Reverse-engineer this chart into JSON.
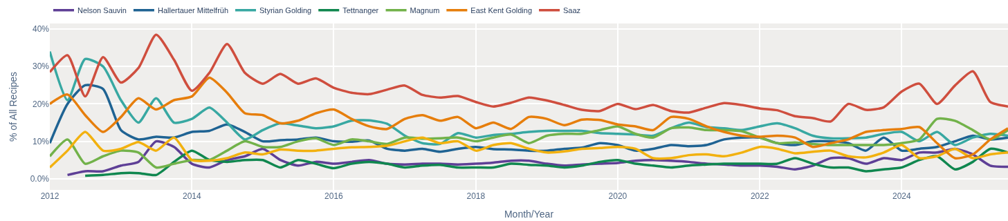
{
  "chart_data": {
    "type": "line",
    "xlabel": "Month/Year",
    "ylabel": "% of All Recipes",
    "x": [
      "2012-01",
      "2012-04",
      "2012-07",
      "2012-10",
      "2013-01",
      "2013-04",
      "2013-07",
      "2013-10",
      "2014-01",
      "2014-04",
      "2014-07",
      "2014-10",
      "2015-01",
      "2015-04",
      "2015-07",
      "2015-10",
      "2016-01",
      "2016-04",
      "2016-07",
      "2016-10",
      "2017-01",
      "2017-04",
      "2017-07",
      "2017-10",
      "2018-01",
      "2018-04",
      "2018-07",
      "2018-10",
      "2019-01",
      "2019-04",
      "2019-07",
      "2019-10",
      "2020-01",
      "2020-04",
      "2020-07",
      "2020-10",
      "2021-01",
      "2021-04",
      "2021-07",
      "2021-10",
      "2022-01",
      "2022-04",
      "2022-07",
      "2022-10",
      "2023-01",
      "2023-04",
      "2023-07",
      "2023-10",
      "2024-01",
      "2024-04",
      "2024-07",
      "2024-10",
      "2025-01",
      "2025-04",
      "2025-07"
    ],
    "xlim": [
      "2012-01",
      "2025-07"
    ],
    "xticks": [
      "2012",
      "2014",
      "2016",
      "2018",
      "2020",
      "2022",
      "2024"
    ],
    "ylim": [
      -3,
      41.5
    ],
    "yticks": [
      {
        "value": 0,
        "label": "0.0%"
      },
      {
        "value": 10,
        "label": "10%"
      },
      {
        "value": 20,
        "label": "20%"
      },
      {
        "value": 30,
        "label": "30%"
      },
      {
        "value": 40,
        "label": "40%"
      }
    ],
    "grid": true,
    "legend": "top left",
    "line_style": "solid",
    "series": [
      {
        "name": "Nelson Sauvin",
        "color": "#5e3f96",
        "values": [
          null,
          1,
          2,
          2,
          3.5,
          4.5,
          10,
          8.5,
          4,
          3,
          5,
          6,
          8,
          5,
          3.5,
          4.5,
          4,
          4.5,
          5,
          4,
          3.8,
          4,
          4,
          3.8,
          4,
          4.3,
          4.8,
          4.8,
          4,
          3.5,
          3.8,
          4,
          4.2,
          4.8,
          5,
          4.8,
          4.5,
          4,
          3.8,
          3.5,
          3.5,
          3.2,
          2.5,
          3.5,
          5.5,
          5.5,
          4,
          5.5,
          5,
          7,
          7,
          8,
          6.5,
          3.5,
          3.2
        ]
      },
      {
        "name": "Hallertauer Mittelfrüh",
        "color": "#1f6393",
        "values": [
          9.5,
          20,
          25,
          24,
          13,
          10.5,
          11.2,
          11,
          12.5,
          12.8,
          14.5,
          12.5,
          10,
          10.3,
          10.5,
          11,
          10,
          9.9,
          10.2,
          8,
          7.5,
          8,
          7.2,
          8,
          8.5,
          7.9,
          7.8,
          7.5,
          7.5,
          8,
          8.3,
          9.5,
          9,
          7.5,
          8,
          9,
          8.7,
          9,
          10.5,
          11,
          11,
          9.5,
          9,
          10,
          10,
          9.5,
          7.5,
          11,
          7.5,
          8,
          8.5,
          10,
          11.5,
          10.5,
          11
        ]
      },
      {
        "name": "Styrian Golding",
        "color": "#38a8a2",
        "values": [
          34,
          21,
          32,
          30,
          21,
          15,
          21.5,
          15,
          16,
          19,
          15,
          10.5,
          13,
          14.8,
          14.2,
          13.5,
          14,
          15.5,
          15.6,
          14.7,
          11.5,
          9.5,
          9.3,
          12.2,
          11,
          11.7,
          12,
          12.5,
          12.8,
          12.8,
          12.8,
          12.2,
          12,
          11.8,
          11.5,
          13.5,
          15,
          13.8,
          13.5,
          13,
          14,
          14.8,
          13.5,
          11.5,
          10.8,
          10.8,
          11,
          12,
          12.5,
          10,
          12.5,
          9,
          11,
          12,
          11.5
        ]
      },
      {
        "name": "Tettnanger",
        "color": "#10874f",
        "values": [
          null,
          null,
          0.8,
          1,
          1.5,
          1.5,
          1,
          4.5,
          7.5,
          5,
          4.5,
          5,
          5,
          3,
          5,
          4,
          2.8,
          4,
          4.5,
          4,
          3,
          3.5,
          3.7,
          3,
          3,
          3,
          4,
          3.7,
          3.5,
          3,
          3.5,
          4.5,
          5,
          4,
          3.5,
          3,
          3.5,
          3.8,
          4,
          4,
          4,
          4,
          5.5,
          4,
          3,
          3,
          2,
          2.5,
          3,
          5,
          6,
          2.5,
          4.5,
          8,
          7
        ]
      },
      {
        "name": "Magnum",
        "color": "#72b24a",
        "values": [
          6,
          10.5,
          4,
          6,
          7.5,
          7,
          3,
          4,
          5,
          5,
          7.5,
          10,
          8.5,
          8.5,
          10,
          10.8,
          9,
          10.5,
          10,
          9.3,
          11,
          10.7,
          10.8,
          11,
          10,
          11,
          11.8,
          9.5,
          11.5,
          12,
          12,
          13,
          14,
          12,
          11,
          13.5,
          13.7,
          13,
          13,
          12.7,
          11,
          9.5,
          9.7,
          9.3,
          9,
          9,
          9,
          9,
          9.5,
          10.5,
          16,
          15.5,
          13,
          10.5,
          13
        ]
      },
      {
        "color": "#f2b10f",
        "values": [
          3,
          7.5,
          12.5,
          7.5,
          8,
          9.8,
          7.5,
          11,
          5,
          4.8,
          5.5,
          7,
          6.5,
          7.8,
          7.5,
          7.5,
          8,
          8.4,
          8.5,
          8.8,
          10,
          11,
          9.5,
          10,
          7.5,
          9,
          9.5,
          8,
          7,
          7.3,
          8,
          8.2,
          8.5,
          8,
          5.5,
          5.5,
          6.3,
          6.5,
          6,
          7,
          8.5,
          8,
          6.8,
          7.2,
          7.5,
          6,
          5.7,
          7,
          9,
          5.5,
          6,
          8,
          5.5,
          6.5,
          7
        ]
      },
      {
        "name": "East Kent Golding",
        "color": "#e67e0c",
        "values": [
          20,
          22.5,
          17,
          12.5,
          16.5,
          21.5,
          18.5,
          21,
          22,
          27,
          23,
          17.5,
          17,
          14.8,
          15.5,
          17.5,
          18.5,
          16,
          14,
          13.3,
          16,
          17,
          15.5,
          16.5,
          13.5,
          15,
          13.3,
          16.5,
          16,
          14.3,
          15.8,
          15.7,
          14.5,
          14,
          13,
          16.5,
          16,
          14,
          12.5,
          11.5,
          11.2,
          11.5,
          11,
          8.5,
          9.5,
          10.5,
          12.5,
          13,
          13.3,
          13.8,
          9.5,
          5.5,
          6.5,
          10.5,
          13.5
        ]
      },
      {
        "name": "Saaz",
        "color": "#cf4e3e",
        "values": [
          28.5,
          33,
          22,
          32.5,
          25.7,
          29.6,
          38.5,
          31.8,
          23.5,
          28.3,
          36,
          28.3,
          25.4,
          28,
          25.4,
          26.8,
          24.3,
          23,
          22.6,
          23.8,
          24.9,
          22.4,
          21.7,
          22.1,
          20.5,
          19.3,
          20.3,
          21.7,
          20.9,
          19.7,
          18.4,
          18.1,
          20,
          18.6,
          19.7,
          18.1,
          17.7,
          19,
          20.2,
          19.7,
          18.8,
          18.3,
          16.7,
          16.2,
          15.3,
          20,
          18.4,
          19.1,
          23.3,
          25.4,
          20,
          24.9,
          28.7,
          20.5,
          19.3
        ]
      }
    ]
  }
}
